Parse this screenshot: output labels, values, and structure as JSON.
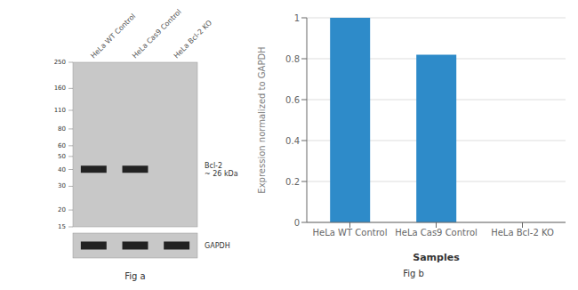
{
  "chart_data": [
    {
      "type": "blot",
      "title": "Fig a",
      "categories": [
        "HeLa WT Control",
        "HeLa Cas9 Control",
        "HeLa Bcl-2 KO"
      ],
      "log": "y",
      "ylim": [
        15,
        250
      ],
      "yticks": [
        250,
        160,
        110,
        80,
        60,
        50,
        40,
        30,
        20,
        15
      ],
      "annotations": [
        "Bcl-2\n~ 26 kDa",
        "GAPDH"
      ]
    },
    {
      "type": "bar",
      "title": "Fig b",
      "categories": [
        "HeLa WT Control",
        "HeLa Cas9 Control",
        "HeLa Bcl-2 KO"
      ],
      "values": [
        1,
        0.82,
        0
      ],
      "color": "#2e8bc9",
      "ylim": [
        0,
        1
      ],
      "yticks": [
        0,
        0.2,
        0.4,
        0.6,
        0.8,
        1
      ],
      "ylabel": "Expression normalized to GAPDH",
      "xlabel": "Samples",
      "grid": true
    }
  ]
}
